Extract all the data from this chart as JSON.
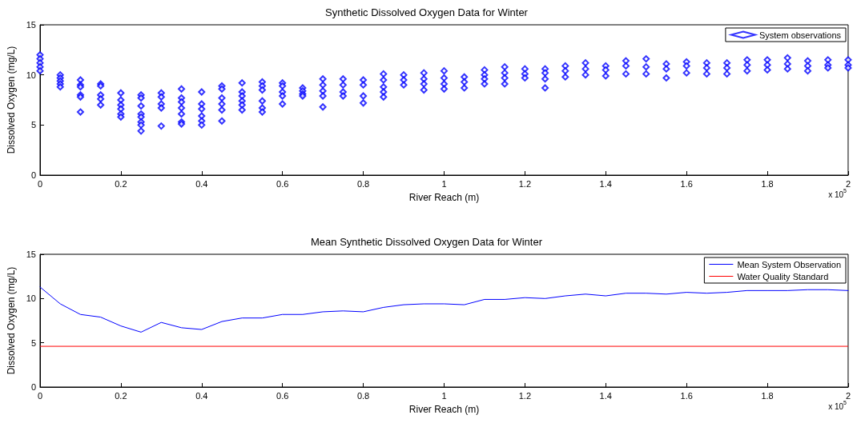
{
  "chart_data": [
    {
      "type": "scatter",
      "title": "Synthetic Dissolved Oxygen Data for Winter",
      "xlabel": "River Reach (m)",
      "ylabel": "Dissolved Oxygen (mg/L)",
      "annotations": [
        "x 10$^{5}$"
      ],
      "xlim": [
        0,
        2
      ],
      "ylim": [
        0,
        15
      ],
      "xticks": [
        0,
        0.2,
        0.4,
        0.6,
        0.8,
        1,
        1.2,
        1.4,
        1.6,
        1.8,
        2
      ],
      "yticks": [
        0,
        5,
        10,
        15
      ],
      "grid": false,
      "legend": "top right",
      "marker": "diamond",
      "series": [
        {
          "name": "System observations",
          "color": "#0000ff",
          "x": [
            0,
            0,
            0,
            0,
            0,
            0.05,
            0.05,
            0.05,
            0.05,
            0.05,
            0.1,
            0.1,
            0.1,
            0.1,
            0.1,
            0.1,
            0.15,
            0.15,
            0.15,
            0.15,
            0.15,
            0.2,
            0.2,
            0.2,
            0.2,
            0.2,
            0.2,
            0.25,
            0.25,
            0.25,
            0.25,
            0.25,
            0.25,
            0.25,
            0.25,
            0.3,
            0.3,
            0.3,
            0.3,
            0.3,
            0.35,
            0.35,
            0.35,
            0.35,
            0.35,
            0.35,
            0.35,
            0.4,
            0.4,
            0.4,
            0.4,
            0.4,
            0.4,
            0.45,
            0.45,
            0.45,
            0.45,
            0.45,
            0.45,
            0.5,
            0.5,
            0.5,
            0.5,
            0.5,
            0.5,
            0.55,
            0.55,
            0.55,
            0.55,
            0.55,
            0.55,
            0.6,
            0.6,
            0.6,
            0.6,
            0.6,
            0.65,
            0.65,
            0.65,
            0.65,
            0.7,
            0.7,
            0.7,
            0.7,
            0.7,
            0.75,
            0.75,
            0.75,
            0.75,
            0.8,
            0.8,
            0.8,
            0.8,
            0.85,
            0.85,
            0.85,
            0.85,
            0.85,
            0.9,
            0.9,
            0.9,
            0.95,
            0.95,
            0.95,
            0.95,
            1,
            1,
            1,
            1,
            1.05,
            1.05,
            1.05,
            1.1,
            1.1,
            1.1,
            1.1,
            1.15,
            1.15,
            1.15,
            1.15,
            1.2,
            1.2,
            1.2,
            1.25,
            1.25,
            1.25,
            1.25,
            1.3,
            1.3,
            1.3,
            1.35,
            1.35,
            1.35,
            1.4,
            1.4,
            1.4,
            1.45,
            1.45,
            1.45,
            1.5,
            1.5,
            1.5,
            1.55,
            1.55,
            1.55,
            1.6,
            1.6,
            1.6,
            1.65,
            1.65,
            1.65,
            1.7,
            1.7,
            1.7,
            1.75,
            1.75,
            1.75,
            1.8,
            1.8,
            1.8,
            1.85,
            1.85,
            1.85,
            1.9,
            1.9,
            1.9,
            1.95,
            1.95,
            1.95,
            2,
            2,
            2
          ],
          "values": [
            12.0,
            11.6,
            11.2,
            10.8,
            10.4,
            10.0,
            9.7,
            9.4,
            9.1,
            8.8,
            9.5,
            9.0,
            8.8,
            8.0,
            7.8,
            6.3,
            9.1,
            8.9,
            8.0,
            7.6,
            7.0,
            8.2,
            7.5,
            7.0,
            6.6,
            6.1,
            5.8,
            8.0,
            7.7,
            6.9,
            6.1,
            5.8,
            5.3,
            5.0,
            4.4,
            8.2,
            7.8,
            7.1,
            6.7,
            4.9,
            8.6,
            7.7,
            7.3,
            6.7,
            6.1,
            5.3,
            5.1,
            8.3,
            7.1,
            6.6,
            5.9,
            5.4,
            5.0,
            8.9,
            8.6,
            7.7,
            7.1,
            6.5,
            5.4,
            9.2,
            8.3,
            7.9,
            7.4,
            7.0,
            6.5,
            9.3,
            8.9,
            8.5,
            7.4,
            6.7,
            6.3,
            9.2,
            8.9,
            8.3,
            7.9,
            7.1,
            8.7,
            8.4,
            8.1,
            7.9,
            9.6,
            9.0,
            8.4,
            7.9,
            6.8,
            9.6,
            9.0,
            8.3,
            7.9,
            9.5,
            9.0,
            7.9,
            7.2,
            10.1,
            9.5,
            8.8,
            8.3,
            7.8,
            10.0,
            9.5,
            9.0,
            10.2,
            9.6,
            9.1,
            8.5,
            10.4,
            9.7,
            9.1,
            8.6,
            9.8,
            9.3,
            8.7,
            10.5,
            10.0,
            9.6,
            9.1,
            10.8,
            10.2,
            9.7,
            9.1,
            10.6,
            10.1,
            9.7,
            10.6,
            10.2,
            9.6,
            8.7,
            10.9,
            10.4,
            9.8,
            11.2,
            10.6,
            10.0,
            10.9,
            10.5,
            9.9,
            11.4,
            10.9,
            10.1,
            11.6,
            10.8,
            10.1,
            11.1,
            10.6,
            9.7,
            11.3,
            10.9,
            10.2,
            11.2,
            10.7,
            10.1,
            11.2,
            10.7,
            10.1,
            11.5,
            11.0,
            10.4,
            11.5,
            11.0,
            10.5,
            11.7,
            11.1,
            10.6,
            11.4,
            10.9,
            10.4,
            11.5,
            11.0,
            10.7,
            11.5,
            11.0,
            10.7
          ]
        }
      ]
    },
    {
      "type": "line",
      "title": "Mean Synthetic Dissolved Oxygen Data for Winter",
      "xlabel": "River Reach (m)",
      "ylabel": "Dissolved Oxygen (mg/L)",
      "annotations": [
        "x 10$^{5}$"
      ],
      "xlim": [
        0,
        2
      ],
      "ylim": [
        0,
        15
      ],
      "xticks": [
        0,
        0.2,
        0.4,
        0.6,
        0.8,
        1,
        1.2,
        1.4,
        1.6,
        1.8,
        2
      ],
      "yticks": [
        0,
        5,
        10,
        15
      ],
      "grid": false,
      "legend": "top right",
      "marker": "none",
      "line_style": "solid",
      "x": [
        0,
        0.05,
        0.1,
        0.15,
        0.2,
        0.25,
        0.3,
        0.35,
        0.4,
        0.45,
        0.5,
        0.55,
        0.6,
        0.65,
        0.7,
        0.75,
        0.8,
        0.85,
        0.9,
        0.95,
        1,
        1.05,
        1.1,
        1.15,
        1.2,
        1.25,
        1.3,
        1.35,
        1.4,
        1.45,
        1.5,
        1.55,
        1.6,
        1.65,
        1.7,
        1.75,
        1.8,
        1.85,
        1.9,
        1.95,
        2
      ],
      "series": [
        {
          "name": "Mean System Observation",
          "color": "#0000ff",
          "values": [
            11.3,
            9.4,
            8.2,
            7.9,
            6.9,
            6.2,
            7.3,
            6.7,
            6.5,
            7.4,
            7.8,
            7.8,
            8.2,
            8.2,
            8.5,
            8.6,
            8.5,
            9.0,
            9.3,
            9.4,
            9.4,
            9.3,
            9.9,
            9.9,
            10.1,
            10.0,
            10.3,
            10.5,
            10.3,
            10.6,
            10.6,
            10.5,
            10.7,
            10.6,
            10.7,
            10.9,
            10.9,
            10.9,
            11.0,
            11.0,
            10.9
          ]
        }
      ],
      "ref_lines": [
        {
          "axis": "y",
          "value": 4.6,
          "label": "Water Quality Standard",
          "color": "#ff0000"
        }
      ]
    }
  ]
}
